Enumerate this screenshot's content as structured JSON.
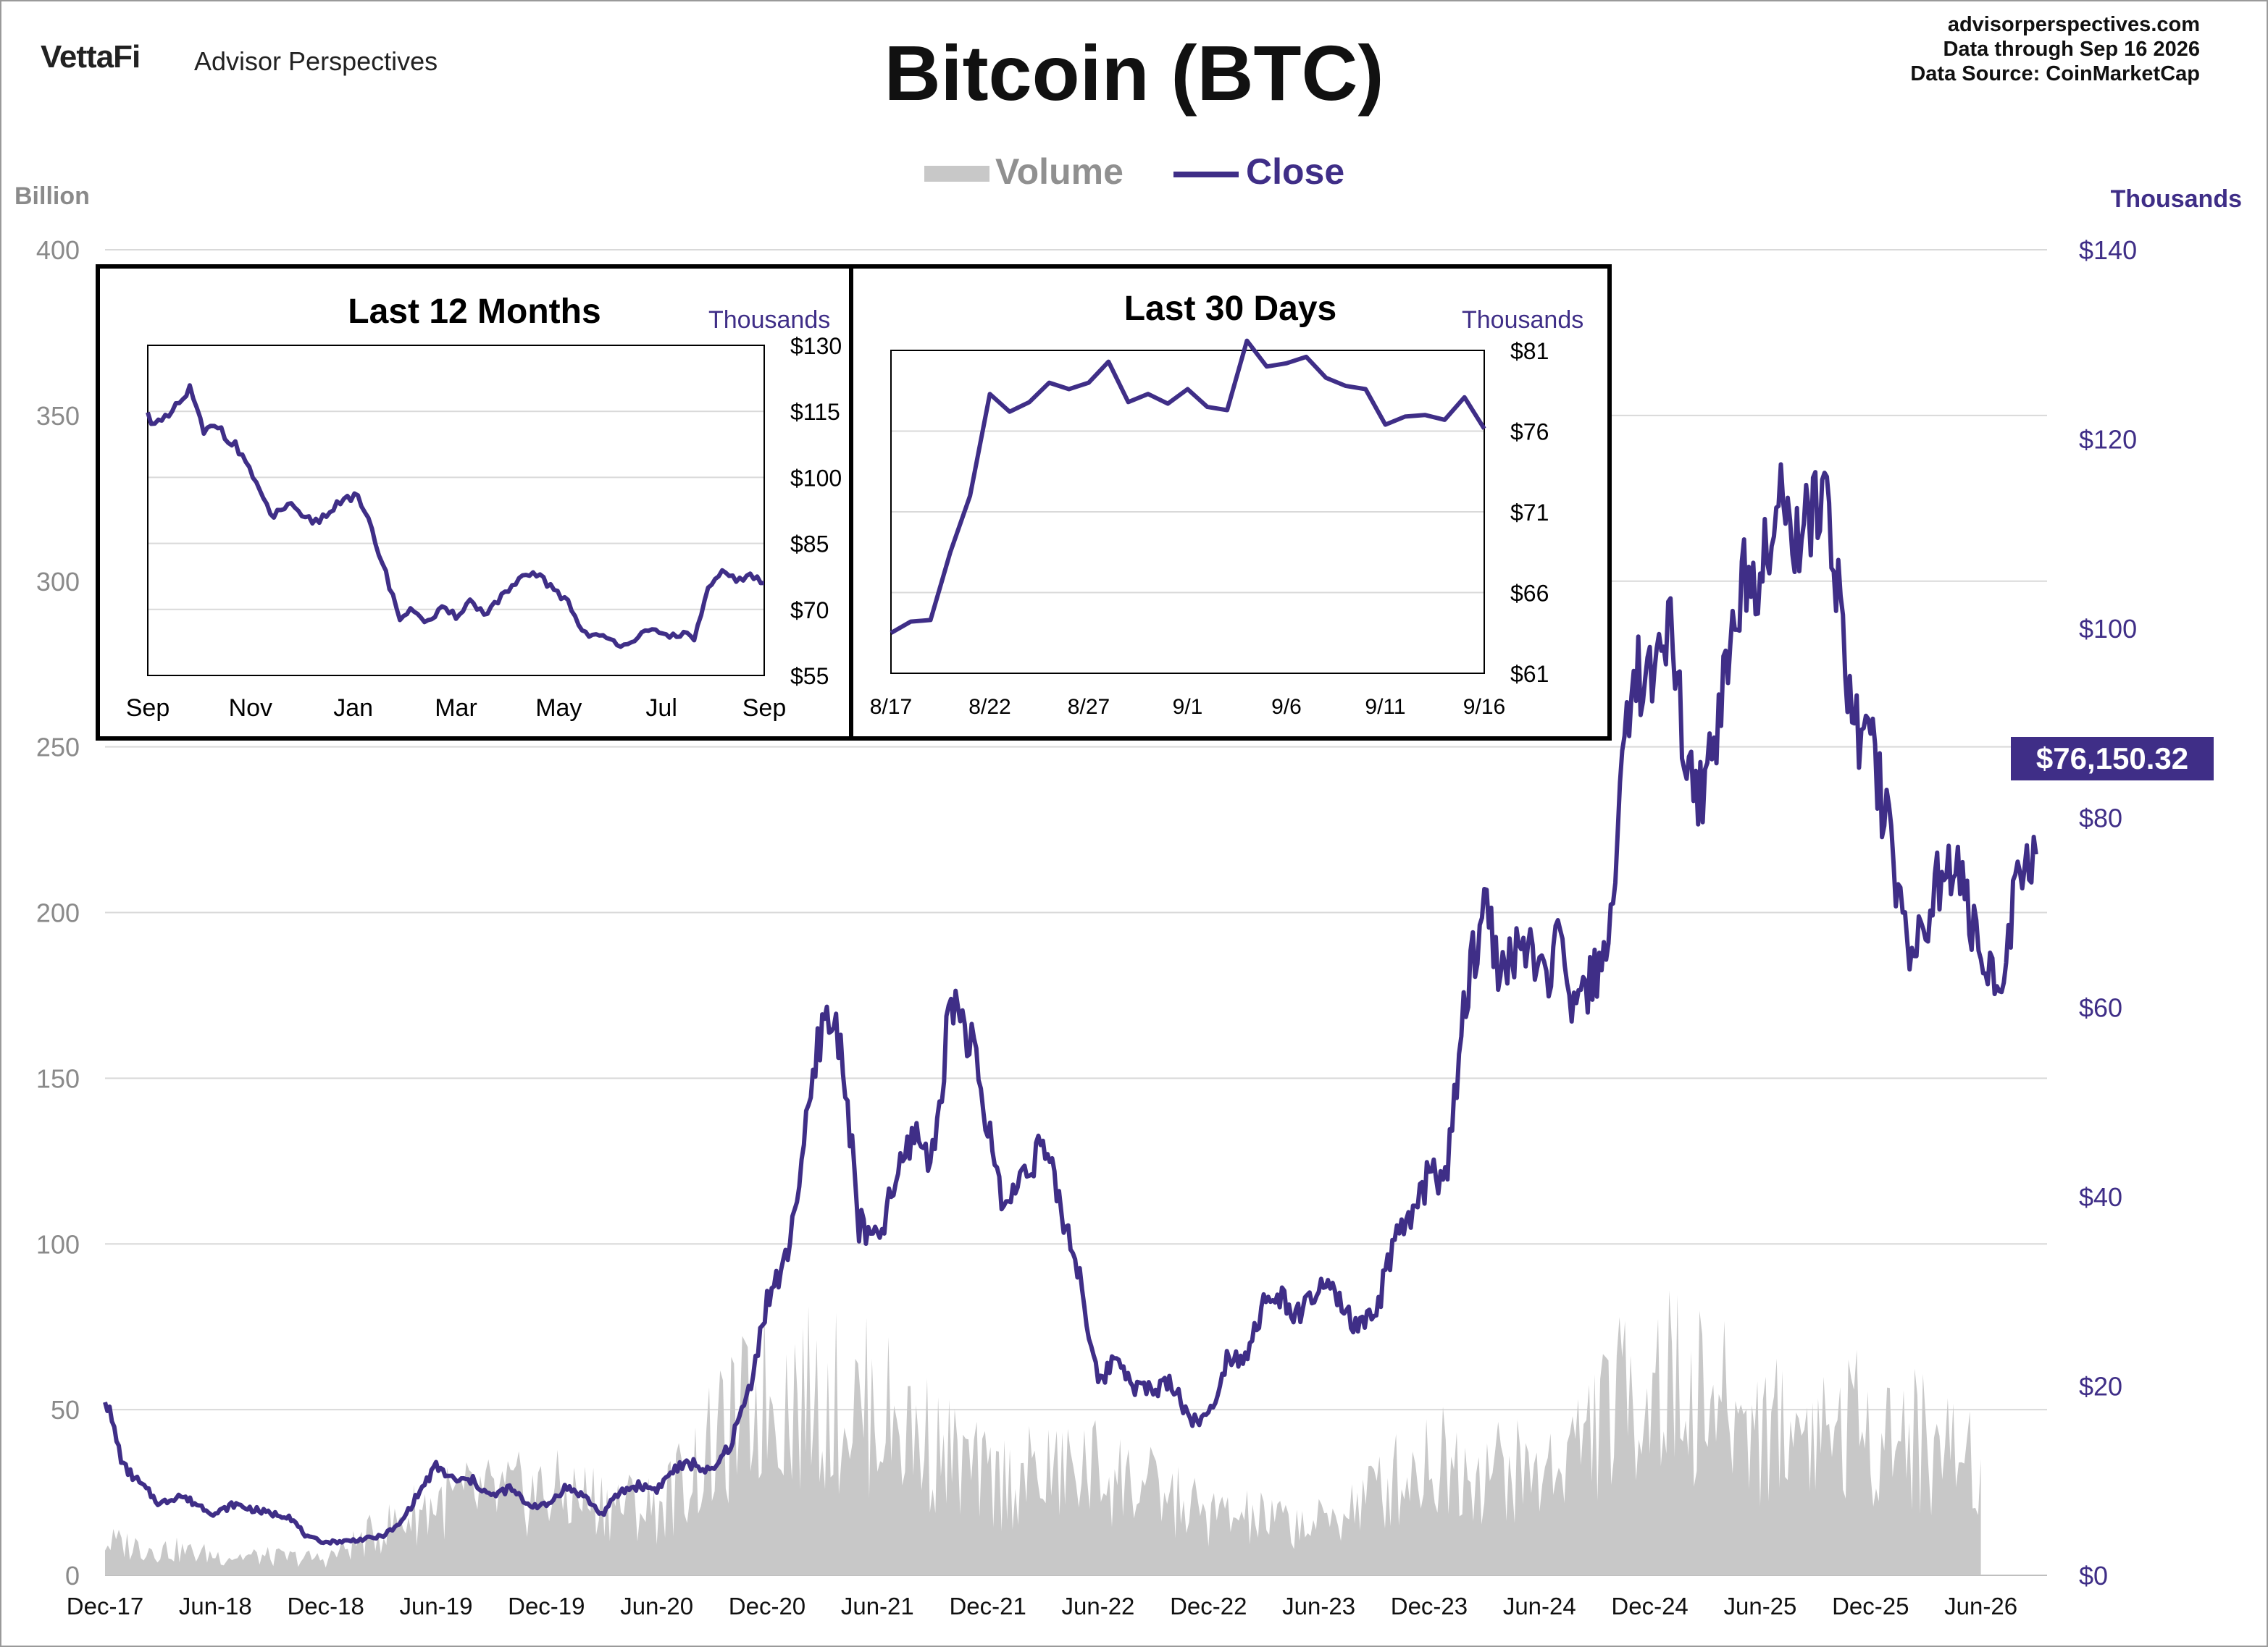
{
  "header": {
    "brand_logo": "VettaFi",
    "brand_name": "Advisor Perspectives",
    "title": "Bitcoin (BTC)",
    "source_site": "advisorperspectives.com",
    "data_through": "Data through  Sep 16 2026",
    "data_source": "Data Source:  CoinMarketCap"
  },
  "legend": {
    "volume_label": "Volume",
    "close_label": "Close"
  },
  "colors": {
    "close": "#3f2e87",
    "volume": "#c8c8c8",
    "grid": "#d9d9d9",
    "left_axis_text": "#8a8a8a"
  },
  "last_price_label": "$76,150.32",
  "chart_data": [
    {
      "type": "line",
      "title": "Bitcoin (BTC)",
      "left_axis": {
        "title": "Billion",
        "ylim": [
          0,
          400
        ],
        "ticks": [
          "0",
          "50",
          "100",
          "150",
          "200",
          "250",
          "300",
          "350",
          "400"
        ]
      },
      "right_axis": {
        "title": "Thousands",
        "ylim": [
          0,
          140
        ],
        "ticks": [
          "$0",
          "$20",
          "$40",
          "$60",
          "$80",
          "$100",
          "$120",
          "$140"
        ]
      },
      "x_tick_labels": [
        "Dec-17",
        "Jun-18",
        "Dec-18",
        "Jun-19",
        "Dec-19",
        "Jun-20",
        "Dec-20",
        "Jun-21",
        "Dec-21",
        "Jun-22",
        "Dec-22",
        "Jun-23",
        "Dec-23",
        "Jun-24",
        "Dec-24",
        "Jun-25",
        "Dec-25",
        "Jun-26"
      ],
      "grid": true,
      "series": [
        {
          "name": "Close",
          "axis": "right",
          "x": [
            "Dec-17",
            "Jan-18",
            "Feb-18",
            "Mar-18",
            "Apr-18",
            "May-18",
            "Jun-18",
            "Jul-18",
            "Aug-18",
            "Sep-18",
            "Oct-18",
            "Nov-18",
            "Dec-18",
            "Jan-19",
            "Feb-19",
            "Mar-19",
            "Apr-19",
            "May-19",
            "Jun-19",
            "Jul-19",
            "Aug-19",
            "Sep-19",
            "Oct-19",
            "Nov-19",
            "Dec-19",
            "Jan-20",
            "Feb-20",
            "Mar-20",
            "Apr-20",
            "May-20",
            "Jun-20",
            "Jul-20",
            "Aug-20",
            "Sep-20",
            "Oct-20",
            "Nov-20",
            "Dec-20",
            "Jan-21",
            "Feb-21",
            "Mar-21",
            "Apr-21",
            "May-21",
            "Jun-21",
            "Jul-21",
            "Aug-21",
            "Sep-21",
            "Oct-21",
            "Nov-21",
            "Dec-21",
            "Jan-22",
            "Feb-22",
            "Mar-22",
            "Apr-22",
            "May-22",
            "Jun-22",
            "Jul-22",
            "Aug-22",
            "Sep-22",
            "Oct-22",
            "Nov-22",
            "Dec-22",
            "Jan-23",
            "Feb-23",
            "Mar-23",
            "Apr-23",
            "May-23",
            "Jun-23",
            "Jul-23",
            "Aug-23",
            "Sep-23",
            "Oct-23",
            "Nov-23",
            "Dec-23",
            "Jan-24",
            "Feb-24",
            "Mar-24",
            "Apr-24",
            "May-24",
            "Jun-24",
            "Jul-24",
            "Aug-24",
            "Sep-24",
            "Oct-24",
            "Nov-24",
            "Dec-24",
            "Jan-25",
            "Feb-25",
            "Mar-25",
            "Apr-25",
            "May-25",
            "Jun-25",
            "Jul-25",
            "Aug-25",
            "Sep-25",
            "Oct-25",
            "Nov-25",
            "Dec-25",
            "Jan-26",
            "Feb-26",
            "Mar-26",
            "Apr-26",
            "May-26",
            "Jun-26",
            "Jul-26",
            "Aug-26",
            "Sep-26"
          ],
          "values": [
            19.0,
            11.5,
            9.5,
            7.5,
            8.5,
            7.5,
            6.5,
            7.5,
            7.0,
            6.5,
            6.3,
            4.0,
            3.5,
            3.6,
            3.8,
            4.1,
            5.3,
            8.5,
            11.5,
            10.0,
            10.0,
            8.3,
            9.2,
            7.5,
            7.3,
            9.3,
            8.5,
            6.4,
            8.8,
            9.5,
            9.1,
            11.3,
            11.8,
            10.8,
            13.8,
            19.5,
            29.0,
            33.0,
            45.0,
            58.8,
            57.0,
            37.0,
            35.0,
            41.5,
            47.0,
            43.8,
            61.3,
            57.0,
            47.0,
            38.5,
            43.2,
            45.5,
            38.5,
            31.8,
            20.0,
            23.3,
            20.0,
            19.5,
            20.5,
            16.5,
            16.6,
            23.1,
            23.2,
            28.5,
            29.3,
            27.2,
            30.5,
            29.3,
            26.0,
            27.0,
            34.5,
            37.7,
            42.3,
            42.6,
            61.2,
            71.3,
            63.0,
            67.5,
            62.7,
            66.0,
            59.0,
            63.3,
            70.2,
            96.4,
            93.4,
            102.4,
            84.3,
            82.5,
            94.2,
            104.6,
            107.1,
            115.7,
            108.2,
            114.1,
            109.5,
            90.4,
            87.5,
            78.6,
            67.0,
            68.2,
            75.5,
            73.0,
            64.0,
            63.0,
            73.0,
            76.15
          ]
        },
        {
          "name": "Volume",
          "axis": "left",
          "x": [
            "Dec-17",
            "Jun-18",
            "Dec-18",
            "Jun-19",
            "Dec-19",
            "Jun-20",
            "Dec-20",
            "Jun-21",
            "Dec-21",
            "Jun-22",
            "Dec-22",
            "Jun-23",
            "Dec-23",
            "Jun-24",
            "Dec-24",
            "Jun-25",
            "Dec-25",
            "Jun-26"
          ],
          "values": [
            10,
            6,
            5,
            22,
            25,
            20,
            55,
            50,
            28,
            32,
            18,
            15,
            35,
            30,
            60,
            45,
            45,
            35
          ]
        }
      ]
    },
    {
      "type": "line",
      "title": "Last 12 Months",
      "y_axis_title": "Thousands",
      "ylim": [
        55,
        130
      ],
      "y_tick_labels": [
        "$55",
        "$70",
        "$85",
        "$100",
        "$115",
        "$130"
      ],
      "x_tick_labels": [
        "Sep",
        "Nov",
        "Jan",
        "Mar",
        "May",
        "Jul",
        "Sep"
      ],
      "grid": true,
      "series": [
        {
          "name": "Close",
          "values": [
            114.0,
            112.0,
            115.5,
            120.0,
            110.0,
            112.0,
            108.0,
            104.0,
            96.0,
            91.0,
            94.0,
            90.5,
            90.0,
            92.0,
            96.0,
            95.0,
            88.0,
            78.0,
            68.0,
            70.0,
            67.0,
            70.0,
            68.5,
            72.0,
            69.0,
            72.0,
            75.0,
            77.5,
            78.0,
            74.0,
            72.0,
            65.0,
            64.0,
            63.0,
            62.0,
            64.0,
            65.0,
            64.0,
            64.5,
            63.5,
            74.5,
            78.0,
            77.0,
            77.5,
            76.0
          ]
        }
      ]
    },
    {
      "type": "line",
      "title": "Last 30 Days",
      "y_axis_title": "Thousands",
      "ylim": [
        61,
        81
      ],
      "y_tick_labels": [
        "$61",
        "$66",
        "$71",
        "$76",
        "$81"
      ],
      "x_tick_labels": [
        "8/17",
        "8/22",
        "8/27",
        "9/1",
        "9/6",
        "9/11",
        "9/16"
      ],
      "grid": true,
      "series": [
        {
          "name": "Close",
          "x": [
            "8/17",
            "8/18",
            "8/19",
            "8/20",
            "8/21",
            "8/22",
            "8/23",
            "8/24",
            "8/25",
            "8/26",
            "8/27",
            "8/28",
            "8/29",
            "8/30",
            "8/31",
            "9/1",
            "9/2",
            "9/3",
            "9/4",
            "9/5",
            "9/6",
            "9/7",
            "9/8",
            "9/9",
            "9/10",
            "9/11",
            "9/12",
            "9/13",
            "9/14",
            "9/15",
            "9/16"
          ],
          "values": [
            63.5,
            64.2,
            64.3,
            68.5,
            72.0,
            78.3,
            77.2,
            77.8,
            79.0,
            78.6,
            79.0,
            80.3,
            77.8,
            78.3,
            77.7,
            78.6,
            77.5,
            77.3,
            81.6,
            80.0,
            80.2,
            80.6,
            79.3,
            78.8,
            78.6,
            76.4,
            76.9,
            77.0,
            76.7,
            78.1,
            76.15
          ]
        }
      ]
    }
  ]
}
